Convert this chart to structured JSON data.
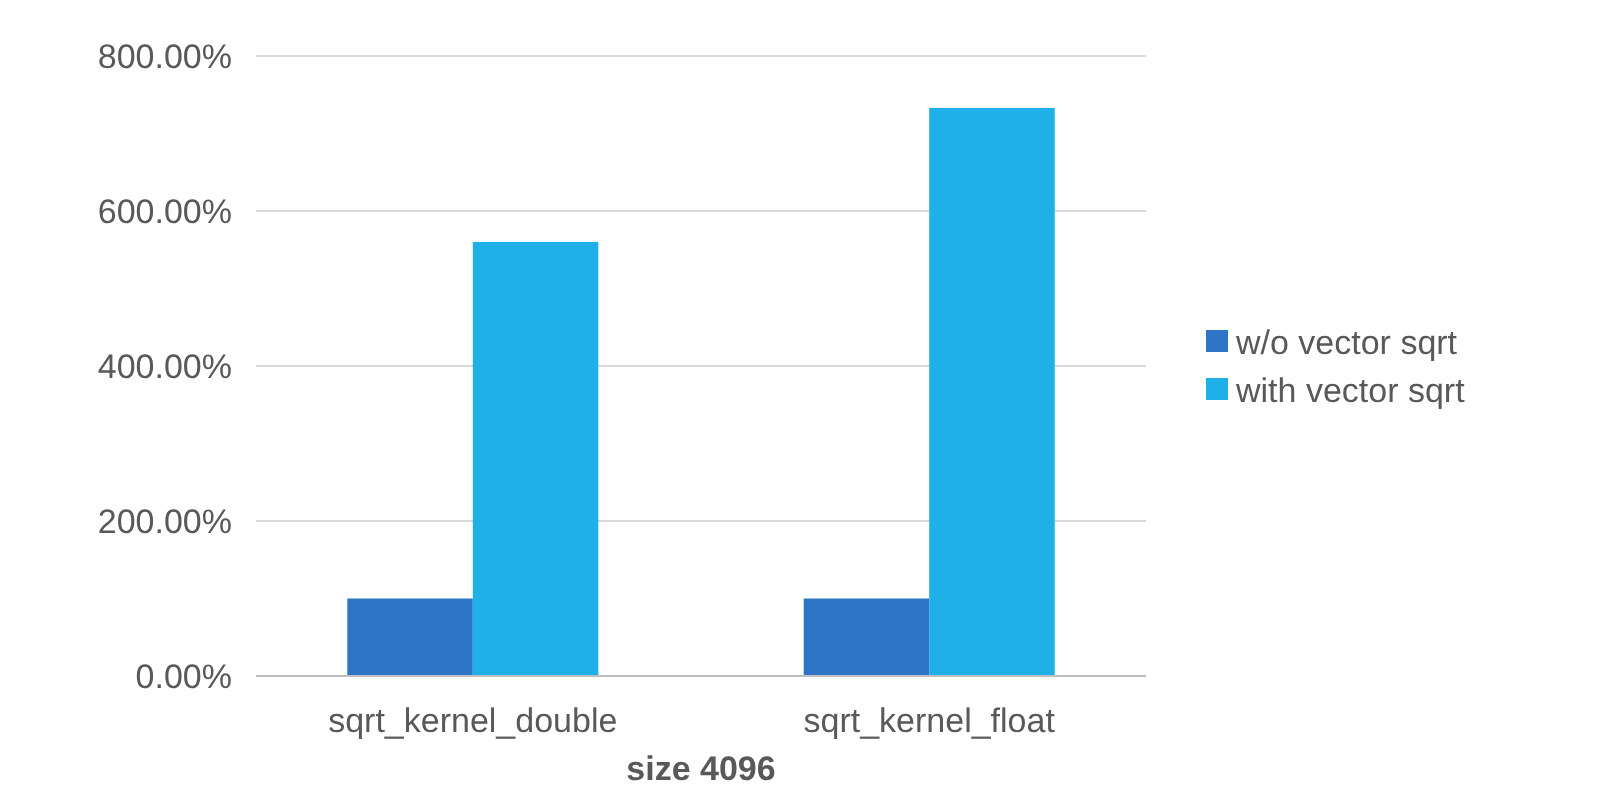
{
  "chart_data": {
    "type": "bar",
    "xlabel": "size 4096",
    "categories": [
      "sqrt_kernel_double",
      "sqrt_kernel_float"
    ],
    "series": [
      {
        "name": "w/o vector sqrt",
        "color": "#2e75c6",
        "values": [
          100,
          100
        ]
      },
      {
        "name": "with vector sqrt",
        "color": "#1fb0e8",
        "values": [
          560,
          733
        ]
      }
    ],
    "ylim": [
      0,
      800
    ],
    "yticks": [
      {
        "value": 0,
        "label": "0.00%"
      },
      {
        "value": 200,
        "label": "200.00%"
      },
      {
        "value": 400,
        "label": "400.00%"
      },
      {
        "value": 600,
        "label": "600.00%"
      },
      {
        "value": 800,
        "label": "800.00%"
      }
    ],
    "grid": "y",
    "legend": "right"
  }
}
